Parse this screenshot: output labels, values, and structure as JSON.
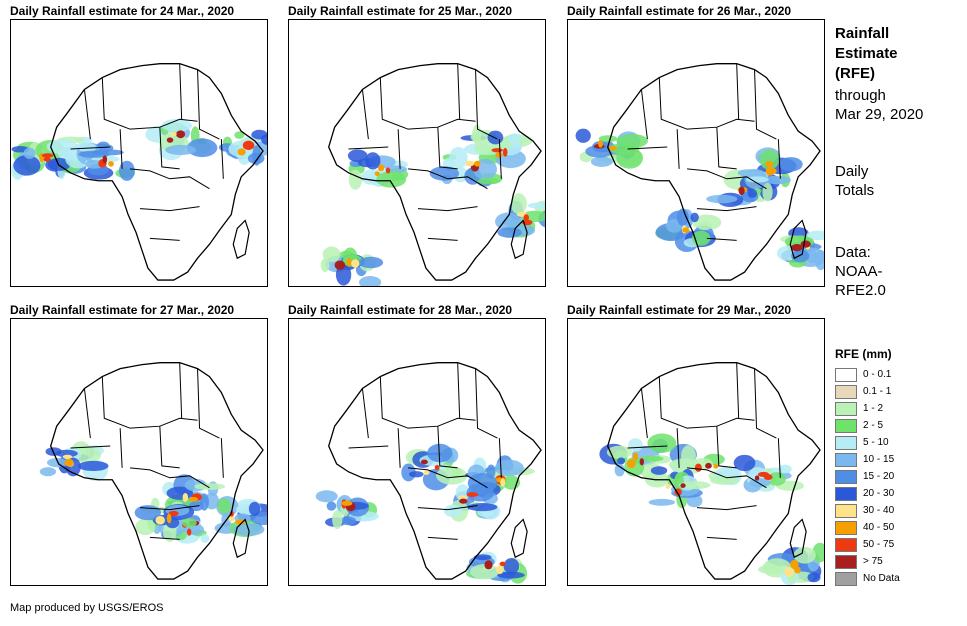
{
  "panels": [
    {
      "title": "Daily Rainfall estimate for 24 Mar., 2020"
    },
    {
      "title": "Daily Rainfall estimate for 25 Mar., 2020"
    },
    {
      "title": "Daily Rainfall estimate for 26 Mar., 2020"
    },
    {
      "title": "Daily Rainfall estimate for 27 Mar., 2020"
    },
    {
      "title": "Daily Rainfall estimate for 28 Mar., 2020"
    },
    {
      "title": "Daily Rainfall estimate for 29 Mar., 2020"
    }
  ],
  "side": {
    "title_line1": "Rainfall",
    "title_line2": "Estimate",
    "title_line3": "(RFE)",
    "through": "through",
    "date": "Mar 29, 2020",
    "daily1": "Daily",
    "daily2": "Totals",
    "data1": "Data:",
    "data2": "NOAA-",
    "data3": "RFE2.0"
  },
  "legend": {
    "title": "RFE (mm)",
    "items": [
      {
        "label": "0 - 0.1",
        "color": "#ffffff"
      },
      {
        "label": "0.1 - 1",
        "color": "#e8d7b9"
      },
      {
        "label": "1 - 2",
        "color": "#b9f2b4"
      },
      {
        "label": "2 - 5",
        "color": "#6fe26c"
      },
      {
        "label": "5 - 10",
        "color": "#b6ecf6"
      },
      {
        "label": "10 - 15",
        "color": "#7ab8ef"
      },
      {
        "label": "15 - 20",
        "color": "#4f8ee6"
      },
      {
        "label": "20 - 30",
        "color": "#2a58d8"
      },
      {
        "label": "30 - 40",
        "color": "#ffe38a"
      },
      {
        "label": "40 - 50",
        "color": "#f5a000"
      },
      {
        "label": "50 - 75",
        "color": "#ee3a12"
      },
      {
        "label": "> 75",
        "color": "#a81f1f"
      },
      {
        "label": "No Data",
        "color": "#a0a0a0"
      }
    ]
  },
  "footer": "Map produced by USGS/EROS"
}
